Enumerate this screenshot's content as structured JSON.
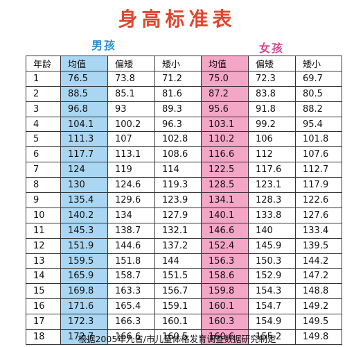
{
  "title": "身高标准表",
  "boy_label": "男孩",
  "girl_label": "女孩",
  "headers": {
    "age": "年龄",
    "avg": "均值",
    "slightly_short": "偏矮",
    "short": "矮小"
  },
  "rows": [
    {
      "age": "1",
      "b_avg": "76.5",
      "b_ss": "73.8",
      "b_s": "71.2",
      "g_avg": "75.0",
      "g_ss": "72.3",
      "g_s": "69.7"
    },
    {
      "age": "2",
      "b_avg": "88.5",
      "b_ss": "85.1",
      "b_s": "81.6",
      "g_avg": "87.2",
      "g_ss": "83.8",
      "g_s": "80.5"
    },
    {
      "age": "3",
      "b_avg": "96.8",
      "b_ss": "93",
      "b_s": "89.3",
      "g_avg": "95.6",
      "g_ss": "91.8",
      "g_s": "88.2"
    },
    {
      "age": "4",
      "b_avg": "104.1",
      "b_ss": "100.2",
      "b_s": "96.3",
      "g_avg": "103.1",
      "g_ss": "99.2",
      "g_s": "95.4"
    },
    {
      "age": "5",
      "b_avg": "111.3",
      "b_ss": "107",
      "b_s": "102.8",
      "g_avg": "110.2",
      "g_ss": "106",
      "g_s": "101.8"
    },
    {
      "age": "6",
      "b_avg": "117.7",
      "b_ss": "113.1",
      "b_s": "108.6",
      "g_avg": "116.6",
      "g_ss": "112",
      "g_s": "107.6"
    },
    {
      "age": "7",
      "b_avg": "124",
      "b_ss": "119",
      "b_s": "114",
      "g_avg": "122.5",
      "g_ss": "117.6",
      "g_s": "112.7"
    },
    {
      "age": "8",
      "b_avg": "130",
      "b_ss": "124.6",
      "b_s": "119.3",
      "g_avg": "128.5",
      "g_ss": "123.1",
      "g_s": "117.9"
    },
    {
      "age": "9",
      "b_avg": "135.4",
      "b_ss": "129.6",
      "b_s": "123.9",
      "g_avg": "134.1",
      "g_ss": "128.3",
      "g_s": "122.6"
    },
    {
      "age": "10",
      "b_avg": "140.2",
      "b_ss": "134",
      "b_s": "127.9",
      "g_avg": "140.1",
      "g_ss": "133.8",
      "g_s": "127.6"
    },
    {
      "age": "11",
      "b_avg": "145.3",
      "b_ss": "138.7",
      "b_s": "132.1",
      "g_avg": "146.6",
      "g_ss": "140",
      "g_s": "133.4"
    },
    {
      "age": "12",
      "b_avg": "151.9",
      "b_ss": "144.6",
      "b_s": "137.2",
      "g_avg": "152.4",
      "g_ss": "145.9",
      "g_s": "139.5"
    },
    {
      "age": "13",
      "b_avg": "159.5",
      "b_ss": "151.8",
      "b_s": "144",
      "g_avg": "156.3",
      "g_ss": "150.3",
      "g_s": "144.2"
    },
    {
      "age": "14",
      "b_avg": "165.9",
      "b_ss": "158.7",
      "b_s": "151.5",
      "g_avg": "158.6",
      "g_ss": "152.9",
      "g_s": "147.2"
    },
    {
      "age": "15",
      "b_avg": "169.8",
      "b_ss": "163.3",
      "b_s": "156.7",
      "g_avg": "159.8",
      "g_ss": "154.3",
      "g_s": "148.8"
    },
    {
      "age": "16",
      "b_avg": "171.6",
      "b_ss": "165.4",
      "b_s": "159.1",
      "g_avg": "160.1",
      "g_ss": "154.7",
      "g_s": "149.2"
    },
    {
      "age": "17",
      "b_avg": "172.3",
      "b_ss": "166.3",
      "b_s": "160.1",
      "g_avg": "160.3",
      "g_ss": "154.9",
      "g_s": "149.5"
    },
    {
      "age": "18",
      "b_avg": "172.7",
      "b_ss": "166.6",
      "b_s": "160.5",
      "g_avg": "160.6",
      "g_ss": "155.2",
      "g_s": "149.8"
    }
  ],
  "footer": "根据2005年九省/市儿童体格发育调查数据研究制定",
  "colors": {
    "title": "#e0462f",
    "boy": "#2a8fd6",
    "girl": "#d9468c",
    "boy_avg_bg": "#a9d6f2",
    "girl_avg_bg": "#f4a6c6"
  }
}
